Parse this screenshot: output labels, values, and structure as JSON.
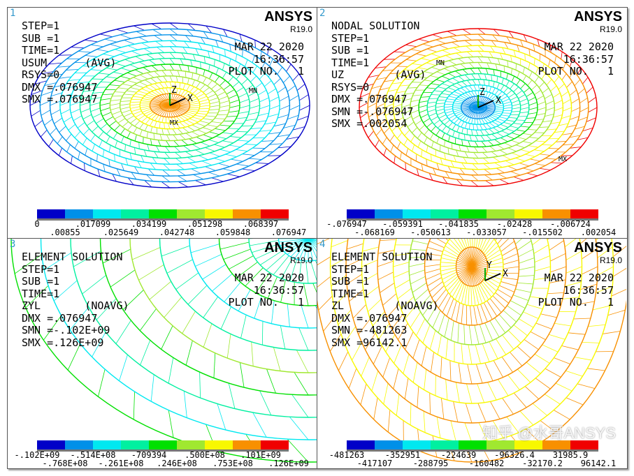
{
  "brand": "ANSYS",
  "version": "R19.0",
  "palette": [
    "#0000c8",
    "#0090e8",
    "#00e8f0",
    "#00f0a0",
    "#00e000",
    "#a0e830",
    "#f8f800",
    "#f89000",
    "#f00000"
  ],
  "panels": [
    {
      "num": "1",
      "info": [
        "",
        "STEP=1",
        "SUB =1",
        "TIME=1",
        "USUM      (AVG)",
        "RSYS=0",
        "DMX =.076947",
        "SMX =.076947"
      ],
      "date": "MAR 22 2020",
      "time": "16:36:57",
      "plot": "PLOT NO.   1",
      "top_labels": [
        "0",
        ".017099",
        ".034199",
        ".051298",
        ".068397"
      ],
      "bottom_labels": [
        ".00855",
        ".025649",
        ".042748",
        ".059848",
        ".076947"
      ],
      "markers": [
        "MN",
        "MX"
      ],
      "axis": [
        "Z",
        "X"
      ]
    },
    {
      "num": "2",
      "info": [
        "NODAL SOLUTION",
        "",
        "STEP=1",
        "SUB =1",
        "TIME=1",
        "UZ        (AVG)",
        "RSYS=0",
        "DMX =.076947",
        "SMN =-.076947",
        "SMX =.002054"
      ],
      "date": "MAR 22 2020",
      "time": "16:36:57",
      "plot": "PLOT NO.   1",
      "top_labels": [
        "-.076947",
        "-.059391",
        "-.041835",
        "-.02428",
        "-.006724"
      ],
      "bottom_labels": [
        "-.068169",
        "-.050613",
        "-.033057",
        "-.015502",
        ".002054"
      ],
      "markers": [
        "MN",
        "MX"
      ],
      "axis": [
        "Z",
        "X"
      ]
    },
    {
      "num": "3",
      "info": [
        "",
        "ELEMENT SOLUTION",
        "",
        "STEP=1",
        "SUB =1",
        "TIME=1",
        "ZYL       (NOAVG)",
        "DMX =.076947",
        "SMN =-.102E+09",
        "SMX =.126E+09"
      ],
      "date": "MAR 22 2020",
      "time": "16:36:57",
      "plot": "PLOT NO.   1",
      "top_labels": [
        "-.102E+09",
        "-.514E+08",
        "-709394",
        ".500E+08",
        ".101E+09"
      ],
      "bottom_labels": [
        "-.768E+08",
        "-.261E+08",
        ".246E+08",
        ".753E+08",
        ".126E+09"
      ]
    },
    {
      "num": "4",
      "info": [
        "",
        "ELEMENT SOLUTION",
        "",
        "STEP=1",
        "SUB =1",
        "TIME=1",
        "ZL        (NOAVG)",
        "DMX =.076947",
        "SMN =-481263",
        "SMX =96142.1"
      ],
      "date": "MAR 22 2020",
      "time": "16:36:57",
      "plot": "PLOT NO.   1",
      "top_labels": [
        "-481263",
        "-352951",
        "-224639",
        "-96326.4",
        "31985.9"
      ],
      "bottom_labels": [
        "-417107",
        "-288795",
        "-160482",
        "-32170.2",
        "96142.1"
      ],
      "axis": [
        "Y",
        "X"
      ]
    }
  ],
  "watermark": "知乎 @水哥ANSYS"
}
